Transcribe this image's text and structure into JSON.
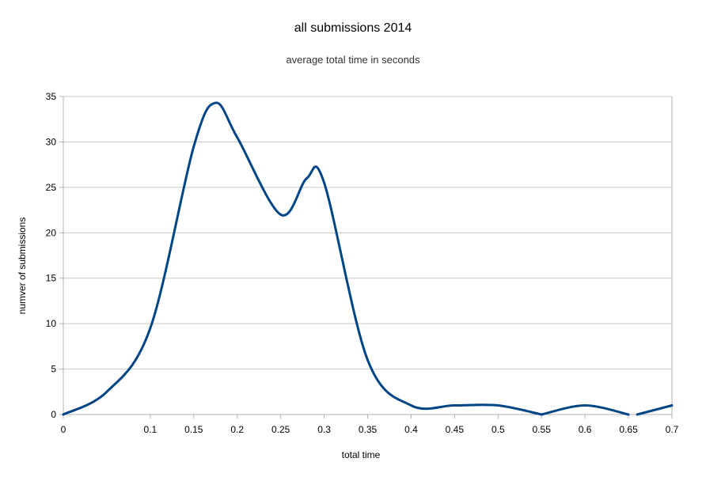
{
  "chart_data": {
    "type": "line",
    "title": "all submissions 2014",
    "subtitle": "average total time in seconds",
    "xlabel": "total time",
    "ylabel": "numver of submissions",
    "xlim": [
      0,
      0.7
    ],
    "ylim": [
      0,
      35
    ],
    "x_ticks": [
      "0",
      "0.1",
      "0.15",
      "0.2",
      "0.25",
      "0.3",
      "0.35",
      "0.4",
      "0.45",
      "0.5",
      "0.55",
      "0.6",
      "0.65",
      "0.7"
    ],
    "y_ticks": [
      "0",
      "5",
      "10",
      "15",
      "20",
      "25",
      "30",
      "35"
    ],
    "grid": true,
    "legend": "none",
    "series": [
      {
        "color": "#004586",
        "segments": [
          [
            [
              0,
              0
            ],
            [
              0.05,
              2.5
            ],
            [
              0.1,
              9.5
            ],
            [
              0.15,
              29.5
            ],
            [
              0.175,
              34.3
            ],
            [
              0.2,
              30.5
            ],
            [
              0.25,
              22
            ],
            [
              0.28,
              26
            ],
            [
              0.3,
              25.5
            ],
            [
              0.35,
              6
            ],
            [
              0.4,
              1
            ],
            [
              0.45,
              1
            ],
            [
              0.5,
              1
            ],
            [
              0.55,
              0
            ]
          ],
          [
            [
              0.55,
              0
            ],
            [
              0.6,
              1
            ],
            [
              0.65,
              0
            ]
          ],
          [
            [
              0.66,
              0
            ],
            [
              0.7,
              1
            ]
          ]
        ]
      }
    ]
  }
}
